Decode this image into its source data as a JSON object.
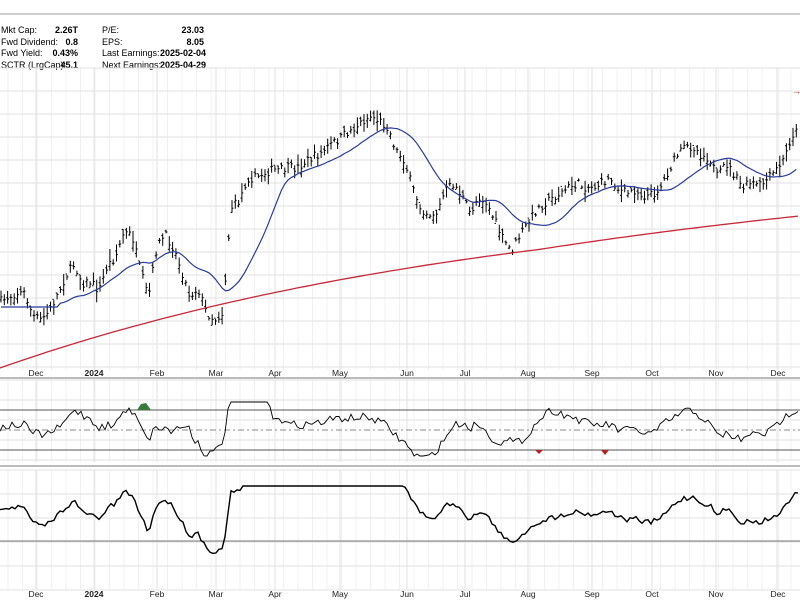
{
  "stats_left": [
    {
      "label": "Mkt Cap:",
      "value": "2.26T"
    },
    {
      "label": "Fwd Dividend:",
      "value": "0.8"
    },
    {
      "label": "Fwd Yield:",
      "value": "0.43%"
    },
    {
      "label": "SCTR (LrgCap):",
      "value": "45.1"
    }
  ],
  "stats_right": [
    {
      "label": "P/E:",
      "value": "23.03"
    },
    {
      "label": "EPS:",
      "value": "8.05"
    },
    {
      "label": "Last Earnings:",
      "value": "2025-02-04"
    },
    {
      "label": "Next Earnings:",
      "value": "2025-04-29"
    }
  ],
  "colors": {
    "price": "#000000",
    "ma_short": "#2a3b9c",
    "ma_long": "#c8283a",
    "oscillator": "#000000",
    "overbought_fill": "#3a7a3a",
    "oversold_fill": "#b22222",
    "grid": "#e2e2e2"
  },
  "chart_data": {
    "type": "line",
    "x_axis_labels": [
      "Dec",
      "2024",
      "Feb",
      "Mar",
      "Apr",
      "May",
      "Jun",
      "Jul",
      "Aug",
      "Sep",
      "Oct",
      "Nov",
      "Dec"
    ],
    "x_axis_bold": [
      "2024"
    ],
    "grid": true,
    "legend": "none",
    "panels": [
      {
        "id": "price",
        "kind": "ohlc",
        "price_trace": [
          302,
          297,
          293,
          293,
          316,
          320,
          311,
          294,
          276,
          264,
          283,
          282,
          291,
          266,
          257,
          233,
          235,
          270,
          298,
          247,
          235,
          247,
          270,
          296,
          288,
          312,
          320,
          313,
          208,
          201,
          178,
          178,
          173,
          170,
          170,
          168,
          168,
          162,
          157,
          153,
          145,
          140,
          133,
          128,
          121,
          116,
          121,
          127,
          150,
          160,
          188,
          208,
          214,
          213,
          190,
          184,
          196,
          214,
          196,
          203,
          221,
          240,
          251,
          236,
          223,
          210,
          203,
          198,
          193,
          187,
          184,
          187,
          187,
          183,
          178,
          190,
          193,
          190,
          196,
          195,
          188,
          172,
          156,
          148,
          146,
          155,
          158,
          178,
          163,
          175,
          188,
          183,
          186,
          180,
          171,
          160,
          135,
          129
        ]
      },
      {
        "id": "oscillator",
        "kind": "line",
        "reference_levels": [
          "upper",
          "mid",
          "lower"
        ]
      },
      {
        "id": "momentum",
        "kind": "line",
        "reference_levels": [
          "mid"
        ]
      }
    ]
  }
}
